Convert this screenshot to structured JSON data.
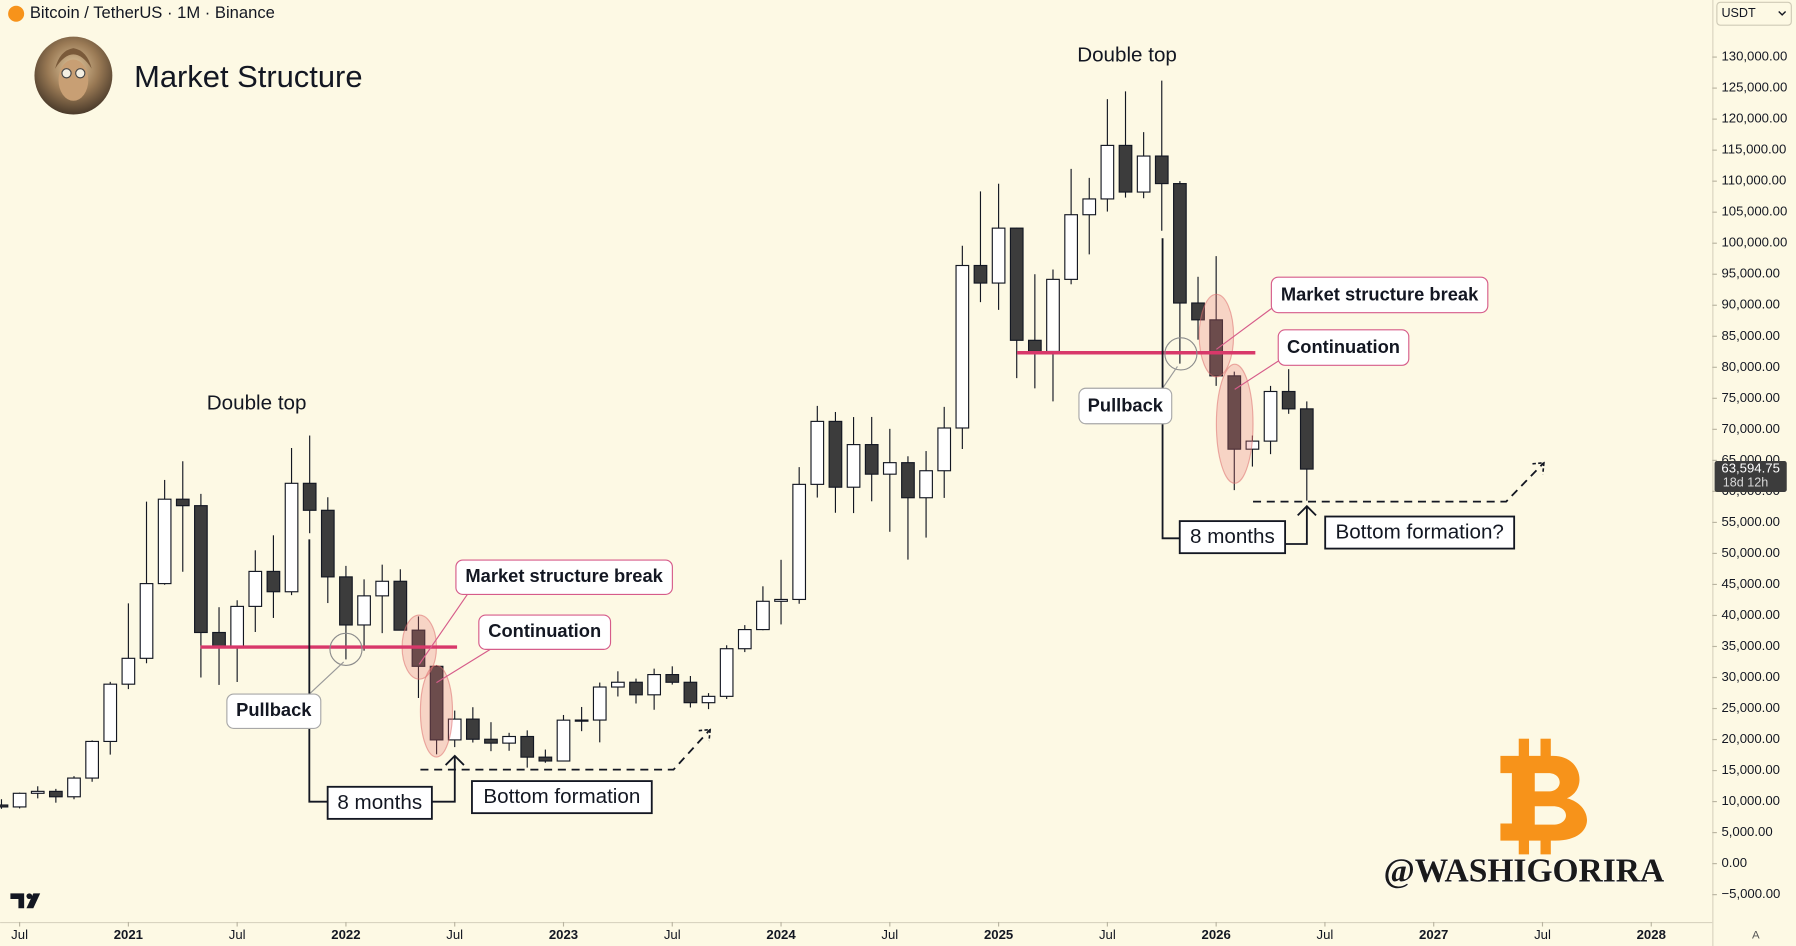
{
  "chart_data": {
    "type": "candlestick",
    "symbol": "Bitcoin / TetherUS · 1M · Binance",
    "title": "Market Structure",
    "currency": "USDT",
    "watermark": "@WASHIGORIRA",
    "autoscale": "A",
    "last_price_label": "63,594.75",
    "countdown": "18d 12h",
    "up_color": "#ffffff",
    "down_color": "#3c3c3c",
    "outline_color": "#131722",
    "grid": false,
    "annotations": [
      "Double top",
      "Double top",
      "Market structure break",
      "Continuation",
      "Pullback",
      "8 months",
      "Bottom formation",
      "Market structure break",
      "Continuation",
      "Pullback",
      "8 months",
      "Bottom formation?"
    ],
    "xlim": [
      "2020-06",
      "2028-04"
    ],
    "xticks": [
      {
        "value": "2020-07",
        "label": "Jul"
      },
      {
        "value": "2021-01",
        "label": "2021"
      },
      {
        "value": "2021-07",
        "label": "Jul"
      },
      {
        "value": "2022-01",
        "label": "2022"
      },
      {
        "value": "2022-07",
        "label": "Jul"
      },
      {
        "value": "2023-01",
        "label": "2023"
      },
      {
        "value": "2023-07",
        "label": "Jul"
      },
      {
        "value": "2024-01",
        "label": "2024"
      },
      {
        "value": "2024-07",
        "label": "Jul"
      },
      {
        "value": "2025-01",
        "label": "2025"
      },
      {
        "value": "2025-07",
        "label": "Jul"
      },
      {
        "value": "2026-01",
        "label": "2026"
      },
      {
        "value": "2026-07",
        "label": "Jul"
      },
      {
        "value": "2027-01",
        "label": "2027"
      },
      {
        "value": "2027-07",
        "label": "Jul"
      },
      {
        "value": "2028-01",
        "label": "2028"
      }
    ],
    "ylim": [
      -9400,
      139200
    ],
    "yticks": [
      {
        "value": -5000,
        "label": "−5,000.00"
      },
      {
        "value": 0,
        "label": "0.00"
      },
      {
        "value": 5000,
        "label": "5,000.00"
      },
      {
        "value": 10000,
        "label": "10,000.00"
      },
      {
        "value": 15000,
        "label": "15,000.00"
      },
      {
        "value": 20000,
        "label": "20,000.00"
      },
      {
        "value": 25000,
        "label": "25,000.00"
      },
      {
        "value": 30000,
        "label": "30,000.00"
      },
      {
        "value": 35000,
        "label": "35,000.00"
      },
      {
        "value": 40000,
        "label": "40,000.00"
      },
      {
        "value": 45000,
        "label": "45,000.00"
      },
      {
        "value": 50000,
        "label": "50,000.00"
      },
      {
        "value": 55000,
        "label": "55,000.00"
      },
      {
        "value": 60000,
        "label": "60,000.00"
      },
      {
        "value": 65000,
        "label": "65,000.00"
      },
      {
        "value": 70000,
        "label": "70,000.00"
      },
      {
        "value": 75000,
        "label": "75,000.00"
      },
      {
        "value": 80000,
        "label": "80,000.00"
      },
      {
        "value": 85000,
        "label": "85,000.00"
      },
      {
        "value": 90000,
        "label": "90,000.00"
      },
      {
        "value": 95000,
        "label": "95,000.00"
      },
      {
        "value": 100000,
        "label": "100,000.00"
      },
      {
        "value": 105000,
        "label": "105,000.00"
      },
      {
        "value": 110000,
        "label": "110,000.00"
      },
      {
        "value": 115000,
        "label": "115,000.00"
      },
      {
        "value": 120000,
        "label": "120,000.00"
      },
      {
        "value": 125000,
        "label": "125,000.00"
      },
      {
        "value": 130000,
        "label": "130,000.00"
      }
    ],
    "x": [
      "2020-06",
      "2020-07",
      "2020-08",
      "2020-09",
      "2020-10",
      "2020-11",
      "2020-12",
      "2021-01",
      "2021-02",
      "2021-03",
      "2021-04",
      "2021-05",
      "2021-06",
      "2021-07",
      "2021-08",
      "2021-09",
      "2021-10",
      "2021-11",
      "2021-12",
      "2022-01",
      "2022-02",
      "2022-03",
      "2022-04",
      "2022-05",
      "2022-06",
      "2022-07",
      "2022-08",
      "2022-09",
      "2022-10",
      "2022-11",
      "2022-12",
      "2023-01",
      "2023-02",
      "2023-03",
      "2023-04",
      "2023-05",
      "2023-06",
      "2023-07",
      "2023-08",
      "2023-09",
      "2023-10",
      "2023-11",
      "2023-12",
      "2024-01",
      "2024-02",
      "2024-03",
      "2024-04",
      "2024-05",
      "2024-06",
      "2024-07",
      "2024-08",
      "2024-09",
      "2024-10",
      "2024-11",
      "2024-12",
      "2025-01",
      "2025-02",
      "2025-03",
      "2025-04",
      "2025-05",
      "2025-06",
      "2025-07",
      "2025-08",
      "2025-09",
      "2025-10",
      "2025-11",
      "2025-12",
      "2026-01",
      "2026-02",
      "2026-03",
      "2026-04",
      "2026-05",
      "2026-06"
    ],
    "open": [
      9448,
      9138,
      11335,
      11649,
      10776,
      13791,
      19695,
      28923,
      33092,
      45135,
      58740,
      57697,
      37254,
      35045,
      41462,
      47100,
      43821,
      61300,
      56951,
      46217,
      38467,
      43160,
      45510,
      37631,
      31801,
      19942,
      23296,
      20048,
      19423,
      20491,
      17165,
      16541,
      23125,
      23142,
      28465,
      29233,
      27210,
      30472,
      29232,
      25941,
      26962,
      34640,
      37724,
      42284,
      42582,
      61131,
      71281,
      60672,
      67540,
      62772,
      64628,
      58974,
      63327,
      70216,
      96408,
      93576,
      102429,
      84350,
      82550,
      94172,
      104591,
      107135,
      115764,
      108246,
      114048,
      109608,
      90360,
      87648,
      78621,
      66800,
      68100,
      76100,
      73300
    ],
    "high": [
      10380,
      11444,
      12468,
      12050,
      14100,
      19863,
      29300,
      41950,
      58352,
      61844,
      64854,
      59600,
      41330,
      42448,
      50500,
      52920,
      67000,
      69000,
      59054,
      47990,
      45821,
      48190,
      47444,
      39845,
      31986,
      24668,
      25211,
      22799,
      21085,
      21480,
      18387,
      23960,
      25250,
      29184,
      31000,
      29820,
      31431,
      31804,
      30244,
      27483,
      35198,
      38450,
      44700,
      48969,
      63913,
      73777,
      72797,
      71979,
      71997,
      70079,
      65659,
      66498,
      73620,
      99588,
      108353,
      109588,
      102500,
      95000,
      95758,
      111980,
      110530,
      123218,
      124474,
      117900,
      126199,
      110000,
      94588,
      97924,
      79300,
      69000,
      77000,
      79700,
      74500
    ],
    "low": [
      8833,
      8893,
      10518,
      9825,
      10375,
      13195,
      17572,
      28130,
      32296,
      44950,
      47044,
      30000,
      28805,
      29278,
      37332,
      39600,
      43284,
      53256,
      42000,
      32917,
      34322,
      37150,
      37578,
      26700,
      17622,
      18782,
      19520,
      18125,
      18190,
      15476,
      16256,
      16499,
      21351,
      19549,
      26942,
      25811,
      24800,
      28861,
      25166,
      24901,
      26538,
      34097,
      37615,
      38555,
      41884,
      59005,
      56552,
      56500,
      58402,
      53485,
      49000,
      52550,
      58946,
      66835,
      90500,
      89256,
      78258,
      76606,
      74508,
      93377,
      98200,
      105100,
      107350,
      107255,
      102000,
      80600,
      84450,
      77000,
      60200,
      64000,
      66000,
      72500,
      58500
    ],
    "close": [
      9138,
      11335,
      11649,
      10776,
      13791,
      19695,
      28923,
      33092,
      45135,
      58740,
      57694,
      37253,
      35045,
      41462,
      47100,
      43824,
      61300,
      56951,
      46217,
      38466,
      43160,
      45510,
      37630,
      31801,
      19942,
      23293,
      20050,
      19423,
      20491,
      17163,
      16542,
      23125,
      23142,
      28465,
      29233,
      27210,
      30472,
      29232,
      25941,
      26962,
      34639,
      37723,
      42283,
      42582,
      61130,
      71280,
      60672,
      67540,
      62772,
      64628,
      58974,
      63327,
      70215,
      96407,
      93576,
      102429,
      84350,
      82550,
      94172,
      104591,
      107135,
      115764,
      108246,
      114048,
      109608,
      90360,
      87648,
      78621,
      66800,
      68100,
      76100,
      73300,
      63594.75
    ]
  }
}
